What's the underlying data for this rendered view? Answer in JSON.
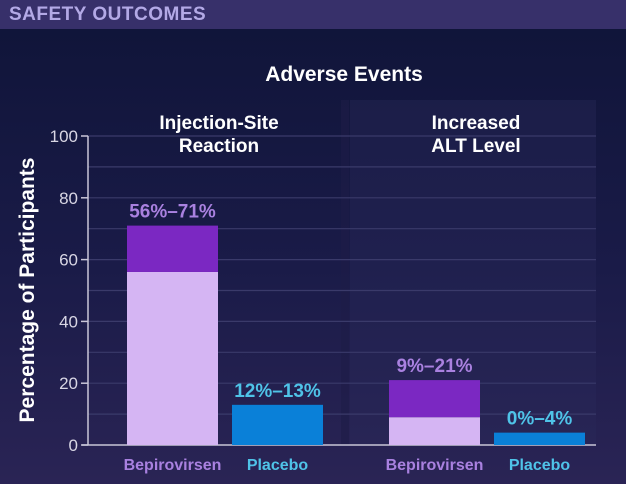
{
  "header": {
    "title": "SAFETY OUTCOMES"
  },
  "colors": {
    "bepi_low": "#d5b5f3",
    "bepi_high": "#7b28c2",
    "placebo": "#0a80d8",
    "bepi_text": "#a981e0",
    "placebo_text": "#4fc3e8",
    "axis": "#c9c6d8",
    "grid": "#3a3a6a"
  },
  "chart_data": {
    "type": "bar",
    "title": "Adverse Events",
    "ylabel": "Percentage of Participants",
    "ylim": [
      0,
      100
    ],
    "yticks": [
      0,
      20,
      40,
      60,
      80,
      100
    ],
    "grid": true,
    "groups": [
      {
        "title_lines": [
          "Injection-Site",
          "Reaction"
        ],
        "bars": [
          {
            "name": "Bepirovirsen",
            "low": 56,
            "high": 71,
            "label": "56%–71%"
          },
          {
            "name": "Placebo",
            "low": 12,
            "high": 13,
            "label": "12%–13%"
          }
        ]
      },
      {
        "title_lines": [
          "Increased",
          "ALT Level"
        ],
        "bars": [
          {
            "name": "Bepirovirsen",
            "low": 9,
            "high": 21,
            "label": "9%–21%"
          },
          {
            "name": "Placebo",
            "low": 0,
            "high": 4,
            "label": "0%–4%"
          }
        ]
      }
    ]
  }
}
